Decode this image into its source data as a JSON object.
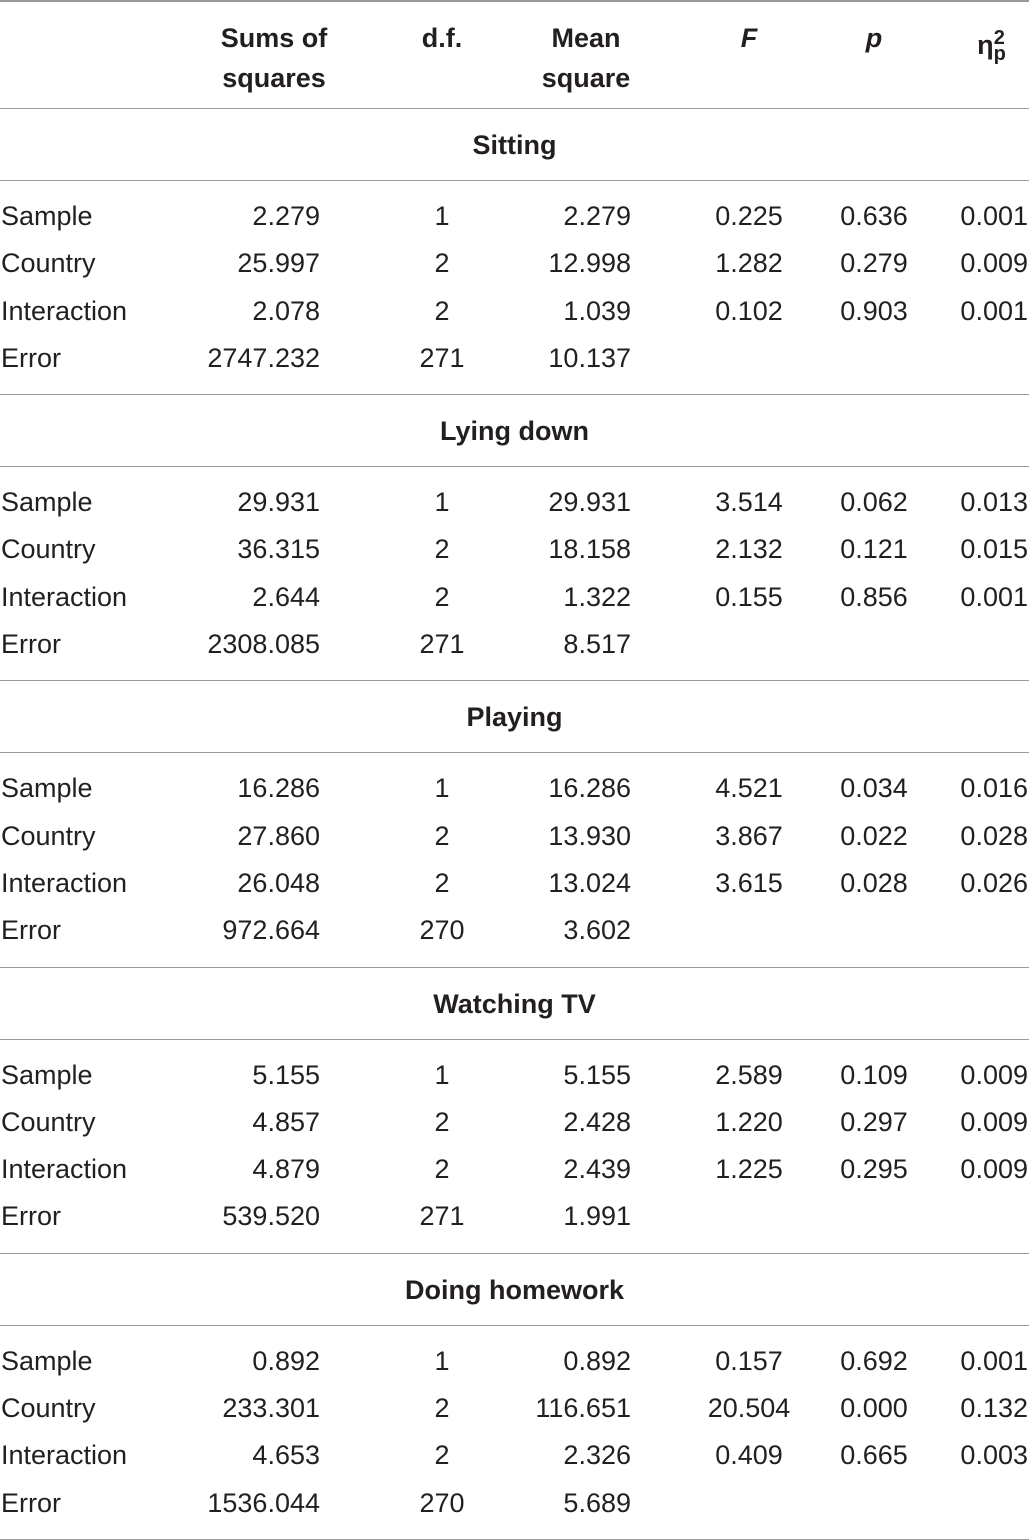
{
  "headers": {
    "label": "",
    "sums_of_squares": [
      "Sums of",
      "squares"
    ],
    "df": "d.f.",
    "mean_square": [
      "Mean",
      "square"
    ],
    "f": "F",
    "p": "p",
    "eta_base": "η",
    "eta_sub": "p",
    "eta_sup": "2"
  },
  "sections": [
    {
      "title": "Sitting",
      "rows": [
        {
          "label": "Sample",
          "ss": "2.279",
          "df": "1",
          "ms": "2.279",
          "f": "0.225",
          "p": "0.636",
          "eta": "0.001"
        },
        {
          "label": "Country",
          "ss": "25.997",
          "df": "2",
          "ms": "12.998",
          "f": "1.282",
          "p": "0.279",
          "eta": "0.009"
        },
        {
          "label": "Interaction",
          "ss": "2.078",
          "df": "2",
          "ms": "1.039",
          "f": "0.102",
          "p": "0.903",
          "eta": "0.001"
        },
        {
          "label": "Error",
          "ss": "2747.232",
          "df": "271",
          "ms": "10.137",
          "f": "",
          "p": "",
          "eta": ""
        }
      ]
    },
    {
      "title": "Lying down",
      "rows": [
        {
          "label": "Sample",
          "ss": "29.931",
          "df": "1",
          "ms": "29.931",
          "f": "3.514",
          "p": "0.062",
          "eta": "0.013"
        },
        {
          "label": "Country",
          "ss": "36.315",
          "df": "2",
          "ms": "18.158",
          "f": "2.132",
          "p": "0.121",
          "eta": "0.015"
        },
        {
          "label": "Interaction",
          "ss": "2.644",
          "df": "2",
          "ms": "1.322",
          "f": "0.155",
          "p": "0.856",
          "eta": "0.001"
        },
        {
          "label": "Error",
          "ss": "2308.085",
          "df": "271",
          "ms": "8.517",
          "f": "",
          "p": "",
          "eta": ""
        }
      ]
    },
    {
      "title": "Playing",
      "rows": [
        {
          "label": "Sample",
          "ss": "16.286",
          "df": "1",
          "ms": "16.286",
          "f": "4.521",
          "p": "0.034",
          "eta": "0.016"
        },
        {
          "label": "Country",
          "ss": "27.860",
          "df": "2",
          "ms": "13.930",
          "f": "3.867",
          "p": "0.022",
          "eta": "0.028"
        },
        {
          "label": "Interaction",
          "ss": "26.048",
          "df": "2",
          "ms": "13.024",
          "f": "3.615",
          "p": "0.028",
          "eta": "0.026"
        },
        {
          "label": "Error",
          "ss": "972.664",
          "df": "270",
          "ms": "3.602",
          "f": "",
          "p": "",
          "eta": ""
        }
      ]
    },
    {
      "title": "Watching TV",
      "rows": [
        {
          "label": "Sample",
          "ss": "5.155",
          "df": "1",
          "ms": "5.155",
          "f": "2.589",
          "p": "0.109",
          "eta": "0.009"
        },
        {
          "label": "Country",
          "ss": "4.857",
          "df": "2",
          "ms": "2.428",
          "f": "1.220",
          "p": "0.297",
          "eta": "0.009"
        },
        {
          "label": "Interaction",
          "ss": "4.879",
          "df": "2",
          "ms": "2.439",
          "f": "1.225",
          "p": "0.295",
          "eta": "0.009"
        },
        {
          "label": "Error",
          "ss": "539.520",
          "df": "271",
          "ms": "1.991",
          "f": "",
          "p": "",
          "eta": ""
        }
      ]
    },
    {
      "title": "Doing homework",
      "rows": [
        {
          "label": "Sample",
          "ss": "0.892",
          "df": "1",
          "ms": "0.892",
          "f": "0.157",
          "p": "0.692",
          "eta": "0.001"
        },
        {
          "label": "Country",
          "ss": "233.301",
          "df": "2",
          "ms": "116.651",
          "f": "20.504",
          "p": "0.000",
          "eta": "0.132"
        },
        {
          "label": "Interaction",
          "ss": "4.653",
          "df": "2",
          "ms": "2.326",
          "f": "0.409",
          "p": "0.665",
          "eta": "0.003"
        },
        {
          "label": "Error",
          "ss": "1536.044",
          "df": "270",
          "ms": "5.689",
          "f": "",
          "p": "",
          "eta": ""
        }
      ]
    }
  ]
}
